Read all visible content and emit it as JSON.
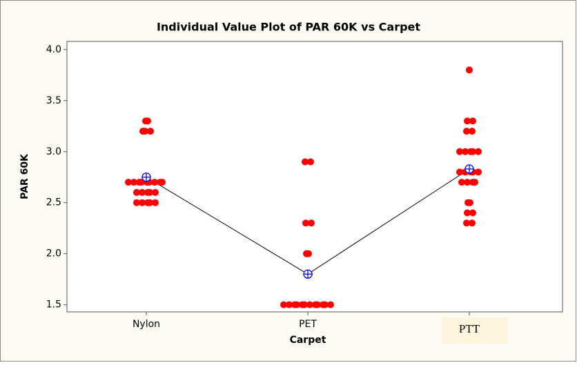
{
  "chart_data": {
    "type": "individual_value",
    "title": "Individual Value Plot of PAR 60K vs Carpet",
    "x_label": "Carpet",
    "y_label": "PAR 60K",
    "categories": [
      "Nylon",
      "PET",
      "PTT"
    ],
    "values": [
      [
        2.5,
        2.5,
        2.5,
        2.5,
        2.5,
        2.6,
        2.6,
        2.6,
        2.6,
        2.6,
        2.7,
        2.7,
        2.7,
        2.7,
        2.7,
        2.7,
        2.7,
        2.7,
        2.7,
        3.2,
        3.2,
        3.2,
        3.3,
        3.3
      ],
      [
        1.5,
        1.5,
        1.5,
        1.5,
        1.5,
        1.5,
        1.5,
        1.5,
        1.5,
        1.5,
        1.5,
        1.5,
        1.8,
        1.8,
        2.0,
        2.0,
        2.3,
        2.3,
        2.9,
        2.9
      ],
      [
        3.8,
        3.3,
        3.3,
        3.2,
        3.2,
        3.0,
        3.0,
        3.0,
        3.0,
        3.0,
        2.8,
        2.8,
        2.8,
        2.8,
        2.8,
        2.7,
        2.7,
        2.7,
        2.7,
        2.5,
        2.5,
        2.4,
        2.4,
        2.3,
        2.3
      ]
    ],
    "means": [
      2.75,
      1.8,
      2.83
    ],
    "color": "#ff0000",
    "mean_color": "#0000ff",
    "line_color": "#000000",
    "ylim": [
      1.43,
      4.08
    ],
    "yticks": [
      {
        "value": 1.5,
        "label": "1.5"
      },
      {
        "value": 2.0,
        "label": "2.0"
      },
      {
        "value": 2.5,
        "label": "2.5"
      },
      {
        "value": 3.0,
        "label": "3.0"
      },
      {
        "value": 3.5,
        "label": "3.5"
      },
      {
        "value": 4.0,
        "label": "4.0"
      }
    ]
  }
}
